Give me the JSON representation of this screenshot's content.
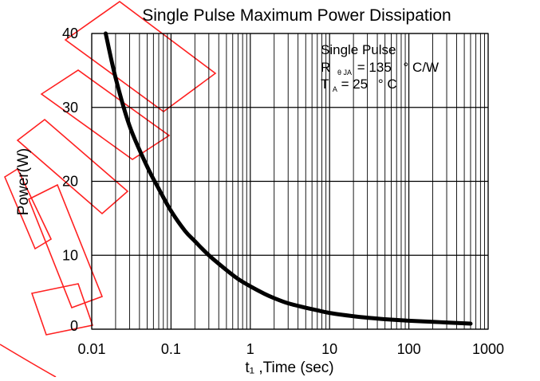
{
  "colors": {
    "background": "#ffffff",
    "grid": "#000000",
    "curve": "#000000",
    "watermark": "#ff2020"
  },
  "chart_data": {
    "type": "line",
    "title": "Single Pulse Maximum Power Dissipation",
    "xlabel": "t₁ ,Time (sec)",
    "ylabel": "Power(W)",
    "x_scale": "log",
    "xlim": [
      0.01,
      1000
    ],
    "ylim": [
      0,
      40
    ],
    "grid": true,
    "x_ticks": [
      {
        "value": 0.01,
        "label": "0.01"
      },
      {
        "value": 0.1,
        "label": "0.1"
      },
      {
        "value": 1,
        "label": "1"
      },
      {
        "value": 10,
        "label": "10"
      },
      {
        "value": 100,
        "label": "100"
      },
      {
        "value": 1000,
        "label": "1000"
      }
    ],
    "y_ticks": [
      {
        "value": 0,
        "label": "0"
      },
      {
        "value": 10,
        "label": "10"
      },
      {
        "value": 20,
        "label": "20"
      },
      {
        "value": 30,
        "label": "30"
      },
      {
        "value": 40,
        "label": "40"
      }
    ],
    "annotation": {
      "line1": "Single Pulse",
      "line2_prefix": "R",
      "line2_sub": "θ JA",
      "line2_value": "= 135",
      "line2_unit": "° C/W",
      "line3_prefix": "T",
      "line3_sub": "A",
      "line3_value": "= 25",
      "line3_unit": "° C"
    },
    "series": [
      {
        "x": [
          0.015,
          0.02,
          0.03,
          0.05,
          0.07,
          0.1,
          0.15,
          0.2,
          0.3,
          0.5,
          0.7,
          1,
          1.5,
          2,
          3,
          5,
          7,
          10,
          20,
          30,
          50,
          100,
          200,
          300,
          600
        ],
        "values": [
          40,
          34,
          27.5,
          22,
          19,
          16,
          13.3,
          11.9,
          10,
          8,
          6.8,
          5.8,
          4.8,
          4.2,
          3.5,
          2.9,
          2.55,
          2.2,
          1.75,
          1.55,
          1.35,
          1.15,
          1.0,
          0.9,
          0.75
        ]
      }
    ]
  }
}
